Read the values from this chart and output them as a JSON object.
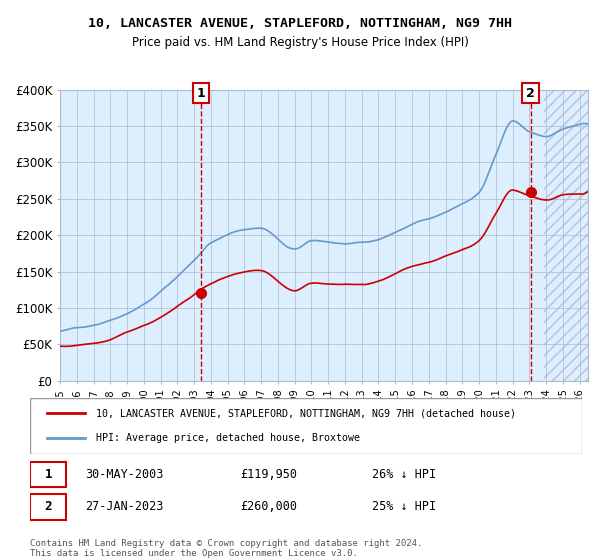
{
  "title_line1": "10, LANCASTER AVENUE, STAPLEFORD, NOTTINGHAM, NG9 7HH",
  "title_line2": "Price paid vs. HM Land Registry's House Price Index (HPI)",
  "ylabel_ticks": [
    "£0",
    "£50K",
    "£100K",
    "£150K",
    "£200K",
    "£250K",
    "£300K",
    "£350K",
    "£400K"
  ],
  "ytick_values": [
    0,
    50000,
    100000,
    150000,
    200000,
    250000,
    300000,
    350000,
    400000
  ],
  "ylim": [
    0,
    400000
  ],
  "xlim_start": 1995.0,
  "xlim_end": 2026.5,
  "sale1_date": 2003.41,
  "sale1_price": 119950,
  "sale1_label": "1",
  "sale1_text": "30-MAY-2003",
  "sale1_amount": "£119,950",
  "sale1_hpi": "26% ↓ HPI",
  "sale2_date": 2023.07,
  "sale2_price": 260000,
  "sale2_label": "2",
  "sale2_text": "27-JAN-2023",
  "sale2_amount": "£260,000",
  "sale2_hpi": "25% ↓ HPI",
  "legend_line1": "10, LANCASTER AVENUE, STAPLEFORD, NOTTINGHAM, NG9 7HH (detached house)",
  "legend_line2": "HPI: Average price, detached house, Broxtowe",
  "footer_line1": "Contains HM Land Registry data © Crown copyright and database right 2024.",
  "footer_line2": "This data is licensed under the Open Government Licence v3.0.",
  "hpi_color": "#6699cc",
  "price_color": "#cc0000",
  "bg_color": "#ddeeff",
  "hatch_color": "#ccccdd",
  "grid_color": "#aabbcc",
  "dashed_color": "#cc0000"
}
